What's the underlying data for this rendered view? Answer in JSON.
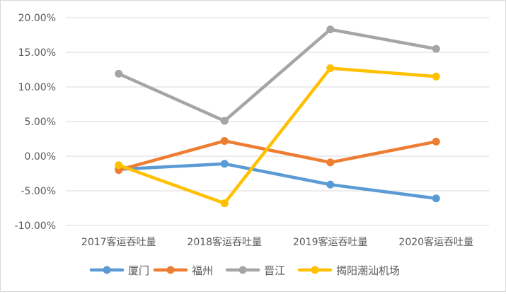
{
  "chart_data": {
    "type": "line",
    "title": "",
    "xlabel": "",
    "ylabel": "",
    "categories": [
      "2017客运吞吐量",
      "2018客运吞吐量",
      "2019客运吞吐量",
      "2020客运吞吐量"
    ],
    "ylim": [
      -0.1,
      0.2
    ],
    "ytick_step": 0.05,
    "y_ticks": [
      "-10.00%",
      "-5.00%",
      "0.00%",
      "5.00%",
      "10.00%",
      "15.00%",
      "20.00%"
    ],
    "grid": true,
    "legend_position": "bottom",
    "series": [
      {
        "name": "厦门",
        "color": "#5b9bd5",
        "values": [
          -0.019,
          -0.011,
          -0.041,
          -0.061
        ]
      },
      {
        "name": "福州",
        "color": "#ed7d31",
        "values": [
          -0.02,
          0.022,
          -0.009,
          0.021
        ]
      },
      {
        "name": "晋江",
        "color": "#a5a5a5",
        "values": [
          0.119,
          0.051,
          0.183,
          0.155
        ]
      },
      {
        "name": "揭阳潮汕机场",
        "color": "#ffc000",
        "values": [
          -0.013,
          -0.068,
          0.127,
          0.115
        ]
      }
    ]
  }
}
